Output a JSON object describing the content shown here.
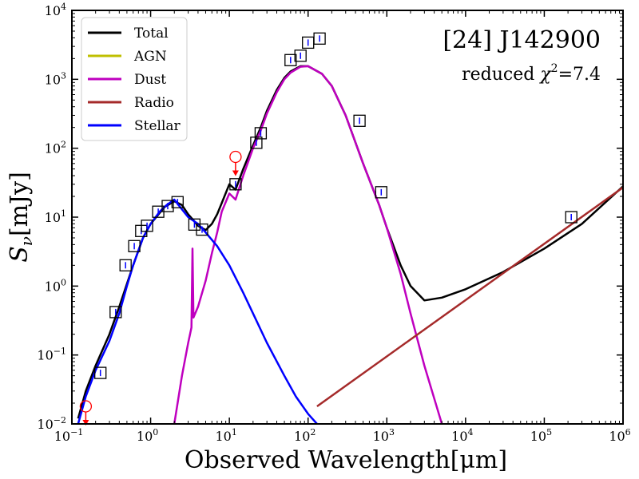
{
  "chart_data": {
    "type": "line",
    "title": "",
    "annotation_title": "[24] J142900",
    "annotation_subtitle_prefix": "reduced ",
    "annotation_subtitle_symbol": "χ",
    "annotation_subtitle_sup": "2",
    "annotation_subtitle_value": "=7.4",
    "xlabel": "Observed Wavelength[μm]",
    "ylabel": "S",
    "ylabel_sub": "ν",
    "ylabel_unit": "[mJy]",
    "xscale": "log",
    "yscale": "log",
    "xlim": [
      0.1,
      1000000
    ],
    "ylim": [
      0.01,
      10000
    ],
    "x_ticks": [
      {
        "base": "10",
        "exp": "−1",
        "value": 0.1
      },
      {
        "base": "10",
        "exp": "0",
        "value": 1
      },
      {
        "base": "10",
        "exp": "1",
        "value": 10
      },
      {
        "base": "10",
        "exp": "2",
        "value": 100
      },
      {
        "base": "10",
        "exp": "3",
        "value": 1000
      },
      {
        "base": "10",
        "exp": "4",
        "value": 10000
      },
      {
        "base": "10",
        "exp": "5",
        "value": 100000
      },
      {
        "base": "10",
        "exp": "6",
        "value": 1000000
      }
    ],
    "y_ticks": [
      {
        "base": "10",
        "exp": "−2",
        "value": 0.01
      },
      {
        "base": "10",
        "exp": "−1",
        "value": 0.1
      },
      {
        "base": "10",
        "exp": "0",
        "value": 1
      },
      {
        "base": "10",
        "exp": "1",
        "value": 10
      },
      {
        "base": "10",
        "exp": "2",
        "value": 100
      },
      {
        "base": "10",
        "exp": "3",
        "value": 1000
      },
      {
        "base": "10",
        "exp": "4",
        "value": 10000
      }
    ],
    "legend_position": "top-left",
    "grid": false,
    "series": [
      {
        "name": "Total",
        "color": "#000000",
        "x": [
          0.12,
          0.15,
          0.2,
          0.3,
          0.4,
          0.6,
          0.8,
          1.0,
          1.5,
          2.0,
          2.5,
          3.0,
          3.5,
          4.0,
          5.0,
          6.0,
          7.0,
          8.0,
          10.0,
          12.0,
          15.0,
          20.0,
          25.0,
          30.0,
          40.0,
          50.0,
          60.0,
          80.0,
          100.0,
          150.0,
          200.0,
          300.0,
          500.0,
          800.0,
          1000.0,
          1500.0,
          2000.0,
          3000.0,
          5000.0,
          10000.0,
          30000.0,
          100000.0,
          300000.0,
          1000000.0
        ],
        "y": [
          0.012,
          0.03,
          0.07,
          0.2,
          0.5,
          2.0,
          5.0,
          8.0,
          14.0,
          17.0,
          15.0,
          11.0,
          9.0,
          7.5,
          6.5,
          8.0,
          11.0,
          16.0,
          30.0,
          25.0,
          50.0,
          110.0,
          200.0,
          350.0,
          700.0,
          1050.0,
          1300.0,
          1550.0,
          1550.0,
          1200.0,
          800.0,
          300.0,
          60.0,
          15.0,
          7.0,
          2.0,
          1.0,
          0.62,
          0.68,
          0.9,
          1.6,
          3.5,
          8.0,
          28.0
        ]
      },
      {
        "name": "AGN",
        "color": "#bfbf00",
        "x": [],
        "y": []
      },
      {
        "name": "Dust",
        "color": "#bf00bf",
        "x": [
          2.0,
          2.5,
          3.0,
          3.3,
          3.4,
          3.5,
          4.0,
          5.0,
          6.0,
          7.0,
          8.0,
          10.0,
          12.0,
          15.0,
          20.0,
          25.0,
          30.0,
          40.0,
          50.0,
          60.0,
          80.0,
          100.0,
          150.0,
          200.0,
          300.0,
          500.0,
          800.0,
          1000.0,
          1500.0,
          2000.0,
          3000.0,
          5000.0
        ],
        "y": [
          0.01,
          0.05,
          0.15,
          0.25,
          3.5,
          0.35,
          0.5,
          1.2,
          3.0,
          6.0,
          12.0,
          22.0,
          18.0,
          40.0,
          100.0,
          180.0,
          320.0,
          650.0,
          1000.0,
          1250.0,
          1520.0,
          1550.0,
          1200.0,
          800.0,
          300.0,
          60.0,
          15.0,
          7.0,
          1.5,
          0.4,
          0.07,
          0.01
        ]
      },
      {
        "name": "Radio",
        "color": "#a52a2a",
        "x": [
          130.0,
          1000000.0
        ],
        "y": [
          0.018,
          27.0
        ]
      },
      {
        "name": "Stellar",
        "color": "#0000ff",
        "x": [
          0.12,
          0.15,
          0.2,
          0.3,
          0.4,
          0.5,
          0.6,
          0.8,
          1.0,
          1.3,
          1.6,
          2.0,
          2.5,
          3.0,
          4.0,
          5.0,
          7.0,
          10.0,
          15.0,
          20.0,
          30.0,
          50.0,
          70.0,
          100.0,
          130.0
        ],
        "y": [
          0.01,
          0.025,
          0.06,
          0.16,
          0.4,
          1.0,
          2.0,
          5.0,
          8.0,
          12.0,
          15.0,
          18.0,
          13.0,
          10.0,
          8.0,
          6.0,
          3.8,
          2.0,
          0.8,
          0.4,
          0.15,
          0.05,
          0.025,
          0.014,
          0.01
        ]
      }
    ],
    "photometry": [
      {
        "x": 0.23,
        "y": 0.055
      },
      {
        "x": 0.36,
        "y": 0.42
      },
      {
        "x": 0.48,
        "y": 2.0
      },
      {
        "x": 0.62,
        "y": 3.8
      },
      {
        "x": 0.76,
        "y": 6.3
      },
      {
        "x": 0.9,
        "y": 7.5
      },
      {
        "x": 1.25,
        "y": 12.0
      },
      {
        "x": 1.65,
        "y": 14.5
      },
      {
        "x": 2.2,
        "y": 16.5
      },
      {
        "x": 3.6,
        "y": 7.8
      },
      {
        "x": 4.5,
        "y": 6.6
      },
      {
        "x": 12.0,
        "y": 30.0
      },
      {
        "x": 22.0,
        "y": 120.0
      },
      {
        "x": 25.0,
        "y": 165.0
      },
      {
        "x": 60.0,
        "y": 1900.0
      },
      {
        "x": 80.0,
        "y": 2200.0
      },
      {
        "x": 100.0,
        "y": 3400.0
      },
      {
        "x": 140.0,
        "y": 3900.0
      },
      {
        "x": 450.0,
        "y": 250.0
      },
      {
        "x": 850.0,
        "y": 23.0
      },
      {
        "x": 220000.0,
        "y": 10.0
      }
    ],
    "upper_limits": [
      {
        "x": 0.15,
        "y": 0.018
      },
      {
        "x": 12.0,
        "y": 75.0
      }
    ]
  }
}
